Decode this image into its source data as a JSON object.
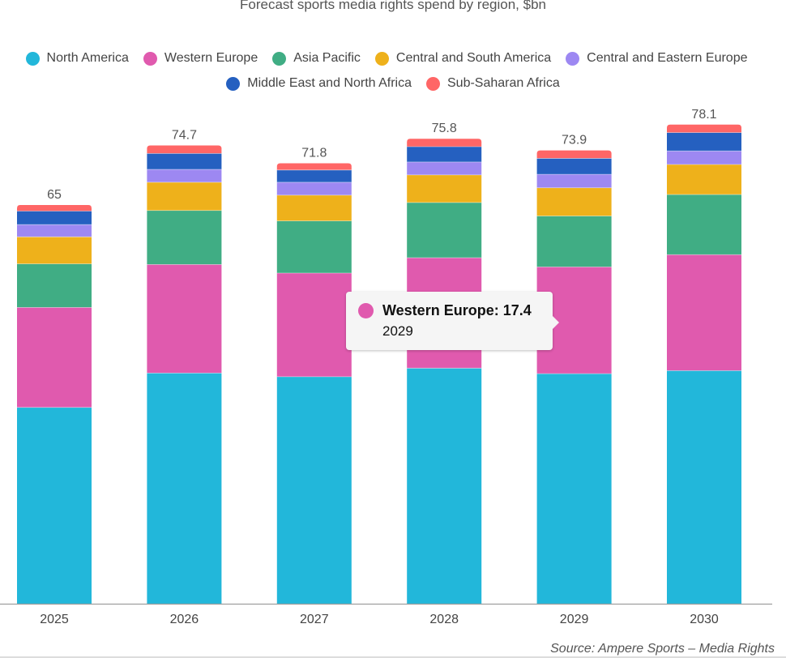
{
  "chart_data": {
    "type": "bar",
    "stacked": true,
    "title": "Forecast sports media rights spend by region, $bn",
    "xlabel": "",
    "ylabel": "",
    "ylim": [
      0,
      82
    ],
    "grid": false,
    "legend_position": "top-center",
    "categories": [
      "2025",
      "2026",
      "2027",
      "2028",
      "2029",
      "2030"
    ],
    "totals": [
      "65",
      "74.7",
      "71.8",
      "75.8",
      "73.9",
      "78.1"
    ],
    "series": [
      {
        "name": "North America",
        "color": "#22b7da",
        "values": [
          32.0,
          37.6,
          37.0,
          38.4,
          37.5,
          38.0
        ]
      },
      {
        "name": "Western Europe",
        "color": "#e05aae",
        "values": [
          16.3,
          17.7,
          16.9,
          18.0,
          17.4,
          18.9
        ]
      },
      {
        "name": "Asia Pacific",
        "color": "#40ad84",
        "values": [
          7.1,
          8.8,
          8.5,
          9.0,
          8.3,
          9.8
        ]
      },
      {
        "name": "Central and South America",
        "color": "#eeb11b",
        "values": [
          4.4,
          4.6,
          4.2,
          4.5,
          4.6,
          4.9
        ]
      },
      {
        "name": "Central and Eastern Europe",
        "color": "#9d88f2",
        "values": [
          2.0,
          2.1,
          2.1,
          2.1,
          2.2,
          2.2
        ]
      },
      {
        "name": "Middle East and North Africa",
        "color": "#2560c0",
        "values": [
          2.2,
          2.6,
          2.0,
          2.5,
          2.6,
          3.0
        ]
      },
      {
        "name": "Sub-Saharan Africa",
        "color": "#ff6666",
        "values": [
          1.0,
          1.3,
          1.1,
          1.3,
          1.3,
          1.3
        ]
      }
    ],
    "source": "Source:  Ampere Sports – Media Rights"
  },
  "tooltip": {
    "series": "Western Europe",
    "label": "Western Europe: 17.4",
    "category": "2029",
    "color": "#e05aae"
  },
  "legend": {
    "row1": [
      0,
      1,
      2,
      3,
      4
    ],
    "row2": [
      5,
      6
    ]
  }
}
